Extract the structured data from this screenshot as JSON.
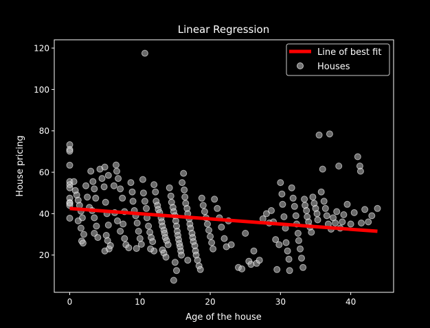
{
  "chart_data": {
    "type": "scatter",
    "title": "Linear Regression",
    "xlabel": "Age of the house",
    "ylabel": "House pricing",
    "xlim": [
      -2.2,
      46.1
    ],
    "ylim": [
      2.0,
      124.0
    ],
    "xticks": [
      0,
      10,
      20,
      30,
      40
    ],
    "yticks": [
      20,
      40,
      60,
      80,
      100,
      120
    ],
    "grid": false,
    "legend_placement": "top-right",
    "colors": {
      "background": "#000000",
      "line": "#ff0000",
      "points": "#bfbfbf",
      "axes": "#ffffff"
    },
    "legend": [
      {
        "label": "Line of best fit",
        "kind": "line",
        "color": "#ff0000"
      },
      {
        "label": "Houses",
        "kind": "marker",
        "color": "#bfbfbf"
      }
    ],
    "line": {
      "name": "Line of best fit",
      "x": [
        0,
        43.8
      ],
      "y": [
        42.5,
        31.5
      ]
    },
    "series": [
      {
        "name": "Houses",
        "points": [
          [
            0,
            73.3
          ],
          [
            0,
            71.0
          ],
          [
            0,
            70.2
          ],
          [
            0,
            63.4
          ],
          [
            0,
            55.5
          ],
          [
            0,
            54.0
          ],
          [
            0,
            52.5
          ],
          [
            0,
            47.5
          ],
          [
            0,
            45.4
          ],
          [
            0,
            45.0
          ],
          [
            0,
            44.0
          ],
          [
            0,
            37.8
          ],
          [
            0.6,
            55.5
          ],
          [
            0.8,
            51.2
          ],
          [
            1,
            49.0
          ],
          [
            1.2,
            46.5
          ],
          [
            1.4,
            44.0
          ],
          [
            1.6,
            41.2
          ],
          [
            1.8,
            38.0
          ],
          [
            1.2,
            36.5
          ],
          [
            1.6,
            33.0
          ],
          [
            2.0,
            30.0
          ],
          [
            1.7,
            26.8
          ],
          [
            1.9,
            25.8
          ],
          [
            2.3,
            53.5
          ],
          [
            2.5,
            48.0
          ],
          [
            2.8,
            43.0
          ],
          [
            3,
            60.5
          ],
          [
            3.3,
            55.5
          ],
          [
            3.5,
            52.0
          ],
          [
            3.7,
            47.5
          ],
          [
            3.2,
            41.5
          ],
          [
            3.5,
            38.0
          ],
          [
            3.8,
            34.0
          ],
          [
            3.5,
            30.5
          ],
          [
            4,
            28.5
          ],
          [
            4.3,
            61.5
          ],
          [
            4.6,
            57.0
          ],
          [
            4.9,
            53.0
          ],
          [
            5.1,
            45.5
          ],
          [
            5.3,
            40.0
          ],
          [
            5.5,
            34.5
          ],
          [
            5.2,
            29.5
          ],
          [
            5.4,
            27.0
          ],
          [
            5.0,
            22.0
          ],
          [
            5.6,
            23.0
          ],
          [
            5.8,
            24.6
          ],
          [
            5.0,
            62.5
          ],
          [
            5.5,
            58.5
          ],
          [
            6.3,
            53.5
          ],
          [
            6.6,
            63.5
          ],
          [
            6.7,
            60.5
          ],
          [
            6.9,
            57.0
          ],
          [
            7.2,
            52.0
          ],
          [
            7.5,
            47.5
          ],
          [
            7.8,
            41.0
          ],
          [
            6.4,
            40.5
          ],
          [
            6.8,
            36.5
          ],
          [
            7.6,
            35.0
          ],
          [
            7.2,
            31.5
          ],
          [
            7.8,
            28.0
          ],
          [
            8.0,
            25.0
          ],
          [
            8.4,
            23.5
          ],
          [
            8.7,
            55.0
          ],
          [
            8.9,
            50.5
          ],
          [
            9.0,
            46.0
          ],
          [
            9.2,
            41.5
          ],
          [
            9.4,
            39.0
          ],
          [
            9.6,
            35.5
          ],
          [
            9.8,
            31.5
          ],
          [
            10.0,
            28.0
          ],
          [
            10.2,
            25.2
          ],
          [
            9.5,
            23.2
          ],
          [
            10.4,
            56.5
          ],
          [
            10.5,
            50.0
          ],
          [
            10.7,
            46.0
          ],
          [
            10.7,
            117.5
          ],
          [
            10.9,
            42.5
          ],
          [
            11.0,
            38.0
          ],
          [
            11.2,
            34.0
          ],
          [
            11.4,
            31.0
          ],
          [
            11.6,
            28.5
          ],
          [
            11.8,
            26.5
          ],
          [
            12,
            22.0
          ],
          [
            11.5,
            23.0
          ],
          [
            12,
            54.0
          ],
          [
            12.2,
            50.5
          ],
          [
            12.3,
            46.0
          ],
          [
            12.5,
            44.0
          ],
          [
            12.6,
            42.0
          ],
          [
            12.8,
            40.5
          ],
          [
            13.0,
            38.0
          ],
          [
            13.1,
            36.0
          ],
          [
            13.2,
            34.0
          ],
          [
            13.4,
            32.0
          ],
          [
            13.5,
            30.5
          ],
          [
            13.6,
            28.5
          ],
          [
            13.8,
            27.0
          ],
          [
            14.0,
            25.0
          ],
          [
            13.2,
            22.5
          ],
          [
            13.4,
            21.0
          ],
          [
            13.7,
            19.0
          ],
          [
            14.2,
            52.5
          ],
          [
            14.4,
            48.5
          ],
          [
            14.5,
            45.5
          ],
          [
            14.7,
            43.0
          ],
          [
            14.8,
            41.0
          ],
          [
            15,
            39.0
          ],
          [
            15.1,
            36.5
          ],
          [
            15.2,
            34.0
          ],
          [
            15.3,
            31.5
          ],
          [
            15.4,
            29.5
          ],
          [
            15.5,
            27.5
          ],
          [
            15.6,
            25.5
          ],
          [
            15.7,
            24.0
          ],
          [
            15.8,
            22.0
          ],
          [
            15.9,
            20.0
          ],
          [
            15.0,
            16.5
          ],
          [
            15.2,
            12.5
          ],
          [
            14.8,
            7.8
          ],
          [
            16.0,
            55.0
          ],
          [
            16.2,
            59.5
          ],
          [
            16.3,
            51.5
          ],
          [
            16.4,
            48.0
          ],
          [
            16.5,
            45.0
          ],
          [
            16.7,
            42.5
          ],
          [
            16.8,
            40.0
          ],
          [
            17.0,
            37.5
          ],
          [
            17.1,
            35.0
          ],
          [
            17.2,
            33.0
          ],
          [
            17.4,
            30.5
          ],
          [
            17.5,
            28.5
          ],
          [
            17.6,
            26.5
          ],
          [
            17.8,
            24.5
          ],
          [
            17.9,
            22.0
          ],
          [
            18.0,
            20.0
          ],
          [
            18.2,
            17.5
          ],
          [
            18.4,
            14.8
          ],
          [
            18.6,
            13.0
          ],
          [
            16.8,
            17.5
          ],
          [
            18.8,
            47.5
          ],
          [
            19.0,
            44.0
          ],
          [
            19.2,
            41.0
          ],
          [
            19.4,
            38.0
          ],
          [
            19.6,
            35.0
          ],
          [
            19.8,
            32.0
          ],
          [
            20.0,
            29.0
          ],
          [
            20.2,
            26.0
          ],
          [
            20.4,
            23.0
          ],
          [
            20.6,
            47.0
          ],
          [
            21.0,
            42.5
          ],
          [
            21.3,
            38.0
          ],
          [
            21.6,
            33.5
          ],
          [
            22.0,
            28.0
          ],
          [
            22.3,
            24.0
          ],
          [
            22.6,
            36.5
          ],
          [
            23.0,
            25.0
          ],
          [
            24.0,
            14.0
          ],
          [
            24.5,
            13.3
          ],
          [
            25.0,
            30.5
          ],
          [
            25.5,
            17.0
          ],
          [
            25.8,
            15.5
          ],
          [
            26.2,
            22.0
          ],
          [
            26.6,
            16.0
          ],
          [
            27.0,
            17.5
          ],
          [
            27.5,
            37.5
          ],
          [
            28.0,
            40.0
          ],
          [
            28.4,
            35.5
          ],
          [
            28.7,
            41.5
          ],
          [
            29.0,
            36.0
          ],
          [
            29.3,
            27.5
          ],
          [
            29.5,
            13.0
          ],
          [
            29.8,
            25.0
          ],
          [
            30.0,
            55.0
          ],
          [
            30.2,
            49.5
          ],
          [
            30.3,
            44.5
          ],
          [
            30.5,
            38.5
          ],
          [
            30.7,
            33.0
          ],
          [
            30.8,
            26.0
          ],
          [
            31.0,
            22.0
          ],
          [
            31.2,
            18.0
          ],
          [
            31.3,
            12.5
          ],
          [
            31.6,
            52.5
          ],
          [
            31.8,
            47.5
          ],
          [
            32.0,
            43.5
          ],
          [
            32.2,
            39.0
          ],
          [
            32.3,
            35.0
          ],
          [
            32.5,
            30.5
          ],
          [
            32.6,
            27.0
          ],
          [
            32.8,
            23.0
          ],
          [
            33.0,
            18.5
          ],
          [
            33.2,
            14.0
          ],
          [
            33.4,
            47.0
          ],
          [
            33.5,
            44.0
          ],
          [
            33.7,
            41.5
          ],
          [
            33.8,
            38.5
          ],
          [
            34.0,
            36.0
          ],
          [
            34.2,
            33.5
          ],
          [
            34.4,
            31.0
          ],
          [
            34.6,
            48.0
          ],
          [
            34.8,
            45.0
          ],
          [
            35.0,
            42.5
          ],
          [
            35.2,
            40.0
          ],
          [
            35.3,
            37.0
          ],
          [
            35.5,
            78.0
          ],
          [
            35.8,
            50.5
          ],
          [
            36.0,
            61.5
          ],
          [
            36.2,
            46.0
          ],
          [
            36.4,
            42.5
          ],
          [
            36.6,
            39.0
          ],
          [
            36.8,
            35.0
          ],
          [
            37.0,
            78.5
          ],
          [
            37.2,
            32.5
          ],
          [
            37.5,
            38.0
          ],
          [
            37.8,
            35.5
          ],
          [
            38.0,
            41.0
          ],
          [
            38.3,
            63.0
          ],
          [
            38.5,
            33.0
          ],
          [
            38.8,
            36.0
          ],
          [
            39.0,
            39.5
          ],
          [
            39.5,
            44.5
          ],
          [
            40.0,
            35.0
          ],
          [
            40.5,
            40.5
          ],
          [
            41.0,
            67.5
          ],
          [
            41.3,
            63.0
          ],
          [
            41.4,
            60.5
          ],
          [
            41.5,
            35.5
          ],
          [
            42.0,
            42.0
          ],
          [
            42.5,
            36.0
          ],
          [
            43.0,
            39.0
          ],
          [
            43.8,
            42.5
          ]
        ]
      }
    ]
  }
}
